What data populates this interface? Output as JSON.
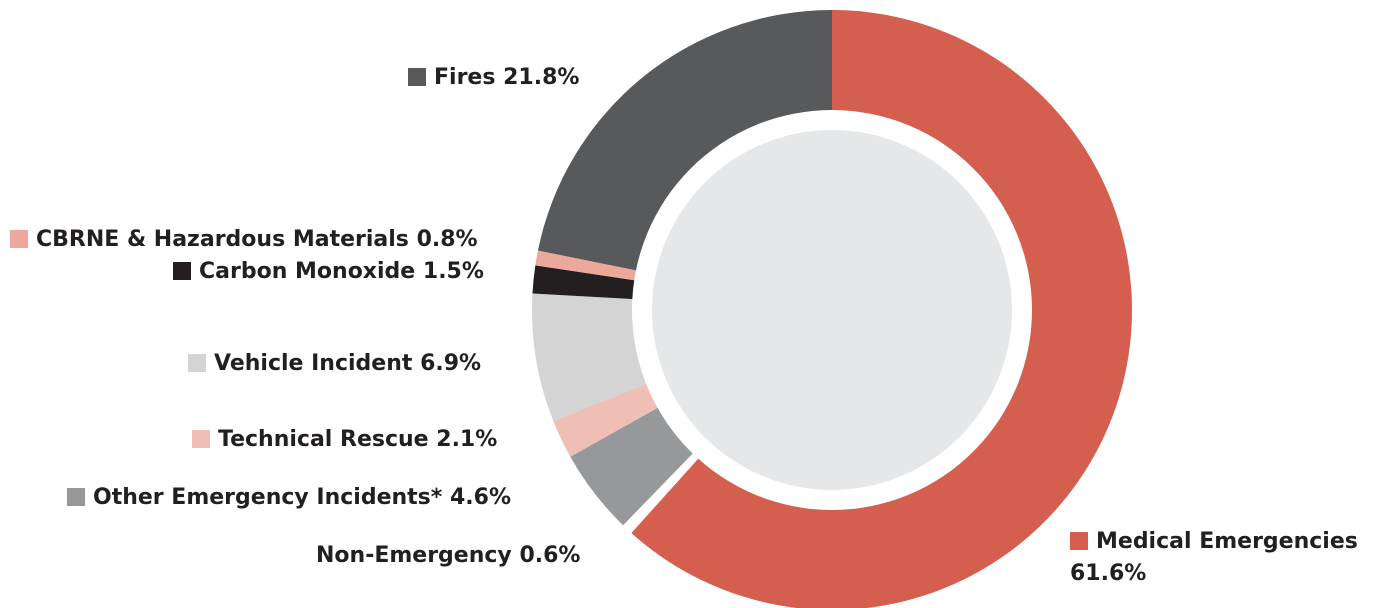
{
  "chart_data": {
    "type": "donut",
    "categories": [
      "Medical Emergencies",
      "Non-Emergency",
      "Other Emergency Incidents*",
      "Technical Rescue",
      "Vehicle Incident",
      "Carbon Monoxide",
      "CBRNE & Hazardous Materials",
      "Fires"
    ],
    "values": [
      61.6,
      0.6,
      4.6,
      2.1,
      6.9,
      1.5,
      0.8,
      21.8
    ],
    "value_labels": [
      "61.6%",
      "0.6%",
      "4.6%",
      "2.1%",
      "6.9%",
      "1.5%",
      "0.8%",
      "21.8%"
    ],
    "colors": [
      "#d45f4f",
      "#ffffff",
      "#97989b",
      "#efbfb5",
      "#d4d4d5",
      "#231f20",
      "#eca89a",
      "#58595b"
    ]
  }
}
